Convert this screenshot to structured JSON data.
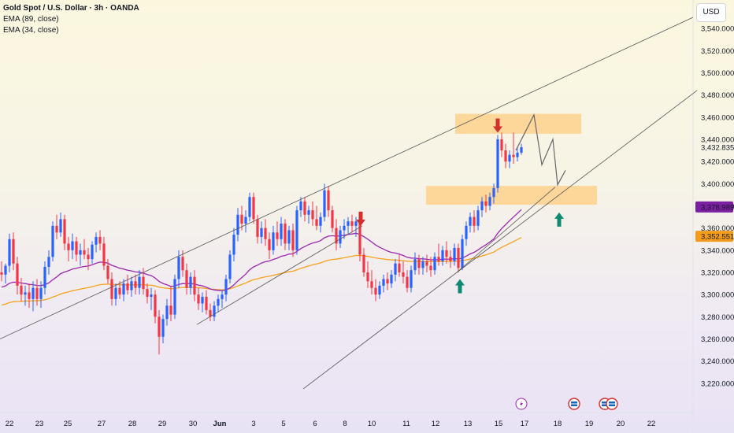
{
  "legend": {
    "title": "Gold Spot / U.S. Dollar · 3h · OANDA",
    "ema89": "EMA (89, close)",
    "ema34": "EMA (34, close)"
  },
  "currency": "USD",
  "colors": {
    "up": "#2962ff",
    "down": "#f23645",
    "ema34": "#9c27b0",
    "ema89": "#f7a21b",
    "zone": "#ffcc80",
    "arrow_down": "#d32f2f",
    "arrow_up": "#0d8a6f",
    "price_tag_purple": "#7b1fa2",
    "price_tag_orange": "#f59c1a",
    "trend_line": "#555555"
  },
  "chart_data": {
    "type": "candlestick",
    "y_axis": {
      "ylim": [
        3205,
        3550
      ],
      "ticks": [
        3220,
        3240,
        3260,
        3280,
        3300,
        3320,
        3340,
        3360,
        3380,
        3400,
        3420,
        3440,
        3460,
        3480,
        3500,
        3520,
        3540
      ]
    },
    "x_axis": {
      "labels": [
        "22",
        "23",
        "25",
        "27",
        "28",
        "29",
        "30",
        "Jun",
        "3",
        "5",
        "6",
        "8",
        "10",
        "11",
        "12",
        "13",
        "15",
        "17",
        "18",
        "19",
        "20",
        "22"
      ]
    },
    "price_tags": [
      {
        "value": 3432.835,
        "label": "3,432.835",
        "kind": "last"
      },
      {
        "value": 3378.989,
        "label": "3,378.989",
        "kind": "ema34"
      },
      {
        "value": 3352.551,
        "label": "3,352.551",
        "kind": "ema89"
      }
    ],
    "zones": [
      {
        "low": 3445,
        "high": 3463
      },
      {
        "low": 3381,
        "high": 3398
      }
    ],
    "trendlines": [
      {
        "from": [
          0,
          3260
        ],
        "to": [
          880,
          3550
        ]
      },
      {
        "from": [
          385,
          3215
        ],
        "to": [
          885,
          3484
        ]
      },
      {
        "from": [
          250,
          3273
        ],
        "to": [
          460,
          3362
        ]
      },
      {
        "from": [
          580,
          3320
        ],
        "to": [
          705,
          3397
        ]
      }
    ],
    "projection": [
      [
        655,
        3430
      ],
      [
        678,
        3462
      ],
      [
        688,
        3417
      ],
      [
        702,
        3440
      ],
      [
        708,
        3399
      ],
      [
        718,
        3412
      ]
    ],
    "arrows": [
      {
        "x": 458,
        "price": 3362,
        "dir": "down"
      },
      {
        "x": 632,
        "price": 3446,
        "dir": "down"
      },
      {
        "x": 584,
        "price": 3314,
        "dir": "up"
      },
      {
        "x": 710,
        "price": 3374,
        "dir": "up"
      }
    ],
    "candles": [
      {
        "x": 2,
        "o": 3320,
        "h": 3330,
        "l": 3312,
        "c": 3318
      },
      {
        "x": 7,
        "o": 3318,
        "h": 3328,
        "l": 3310,
        "c": 3326
      },
      {
        "x": 12,
        "o": 3326,
        "h": 3355,
        "l": 3320,
        "c": 3350
      },
      {
        "x": 17,
        "o": 3350,
        "h": 3356,
        "l": 3322,
        "c": 3328
      },
      {
        "x": 22,
        "o": 3328,
        "h": 3334,
        "l": 3300,
        "c": 3308
      },
      {
        "x": 27,
        "o": 3308,
        "h": 3315,
        "l": 3294,
        "c": 3300
      },
      {
        "x": 32,
        "o": 3300,
        "h": 3308,
        "l": 3290,
        "c": 3302
      },
      {
        "x": 37,
        "o": 3302,
        "h": 3310,
        "l": 3288,
        "c": 3296
      },
      {
        "x": 42,
        "o": 3296,
        "h": 3312,
        "l": 3285,
        "c": 3306
      },
      {
        "x": 47,
        "o": 3306,
        "h": 3314,
        "l": 3290,
        "c": 3296
      },
      {
        "x": 52,
        "o": 3296,
        "h": 3312,
        "l": 3288,
        "c": 3306
      },
      {
        "x": 57,
        "o": 3306,
        "h": 3330,
        "l": 3300,
        "c": 3325
      },
      {
        "x": 62,
        "o": 3325,
        "h": 3340,
        "l": 3318,
        "c": 3334
      },
      {
        "x": 67,
        "o": 3334,
        "h": 3366,
        "l": 3330,
        "c": 3362
      },
      {
        "x": 72,
        "o": 3362,
        "h": 3372,
        "l": 3350,
        "c": 3356
      },
      {
        "x": 77,
        "o": 3356,
        "h": 3374,
        "l": 3352,
        "c": 3368
      },
      {
        "x": 82,
        "o": 3368,
        "h": 3372,
        "l": 3340,
        "c": 3346
      },
      {
        "x": 87,
        "o": 3346,
        "h": 3352,
        "l": 3330,
        "c": 3340
      },
      {
        "x": 92,
        "o": 3340,
        "h": 3355,
        "l": 3332,
        "c": 3348
      },
      {
        "x": 97,
        "o": 3348,
        "h": 3352,
        "l": 3330,
        "c": 3336
      },
      {
        "x": 102,
        "o": 3336,
        "h": 3346,
        "l": 3326,
        "c": 3340
      },
      {
        "x": 107,
        "o": 3340,
        "h": 3350,
        "l": 3332,
        "c": 3336
      },
      {
        "x": 112,
        "o": 3336,
        "h": 3342,
        "l": 3322,
        "c": 3332
      },
      {
        "x": 117,
        "o": 3332,
        "h": 3348,
        "l": 3328,
        "c": 3345
      },
      {
        "x": 122,
        "o": 3345,
        "h": 3356,
        "l": 3338,
        "c": 3352
      },
      {
        "x": 127,
        "o": 3352,
        "h": 3358,
        "l": 3340,
        "c": 3346
      },
      {
        "x": 132,
        "o": 3346,
        "h": 3352,
        "l": 3322,
        "c": 3326
      },
      {
        "x": 137,
        "o": 3326,
        "h": 3332,
        "l": 3310,
        "c": 3314
      },
      {
        "x": 142,
        "o": 3314,
        "h": 3320,
        "l": 3290,
        "c": 3296
      },
      {
        "x": 147,
        "o": 3296,
        "h": 3310,
        "l": 3290,
        "c": 3306
      },
      {
        "x": 152,
        "o": 3306,
        "h": 3312,
        "l": 3296,
        "c": 3300
      },
      {
        "x": 157,
        "o": 3300,
        "h": 3314,
        "l": 3294,
        "c": 3310
      },
      {
        "x": 162,
        "o": 3310,
        "h": 3318,
        "l": 3300,
        "c": 3304
      },
      {
        "x": 167,
        "o": 3304,
        "h": 3316,
        "l": 3298,
        "c": 3312
      },
      {
        "x": 172,
        "o": 3312,
        "h": 3318,
        "l": 3300,
        "c": 3306
      },
      {
        "x": 177,
        "o": 3306,
        "h": 3322,
        "l": 3300,
        "c": 3316
      },
      {
        "x": 182,
        "o": 3316,
        "h": 3324,
        "l": 3300,
        "c": 3305
      },
      {
        "x": 187,
        "o": 3305,
        "h": 3310,
        "l": 3292,
        "c": 3298
      },
      {
        "x": 192,
        "o": 3298,
        "h": 3306,
        "l": 3286,
        "c": 3300
      },
      {
        "x": 197,
        "o": 3300,
        "h": 3304,
        "l": 3274,
        "c": 3280
      },
      {
        "x": 202,
        "o": 3280,
        "h": 3286,
        "l": 3246,
        "c": 3262
      },
      {
        "x": 207,
        "o": 3262,
        "h": 3282,
        "l": 3256,
        "c": 3278
      },
      {
        "x": 212,
        "o": 3278,
        "h": 3296,
        "l": 3272,
        "c": 3290
      },
      {
        "x": 217,
        "o": 3290,
        "h": 3308,
        "l": 3276,
        "c": 3282
      },
      {
        "x": 222,
        "o": 3282,
        "h": 3318,
        "l": 3278,
        "c": 3314
      },
      {
        "x": 227,
        "o": 3314,
        "h": 3340,
        "l": 3306,
        "c": 3334
      },
      {
        "x": 232,
        "o": 3334,
        "h": 3340,
        "l": 3316,
        "c": 3322
      },
      {
        "x": 237,
        "o": 3322,
        "h": 3328,
        "l": 3300,
        "c": 3306
      },
      {
        "x": 242,
        "o": 3306,
        "h": 3320,
        "l": 3300,
        "c": 3316
      },
      {
        "x": 247,
        "o": 3316,
        "h": 3322,
        "l": 3294,
        "c": 3300
      },
      {
        "x": 252,
        "o": 3300,
        "h": 3306,
        "l": 3286,
        "c": 3292
      },
      {
        "x": 257,
        "o": 3292,
        "h": 3302,
        "l": 3284,
        "c": 3298
      },
      {
        "x": 262,
        "o": 3298,
        "h": 3304,
        "l": 3282,
        "c": 3286
      },
      {
        "x": 267,
        "o": 3286,
        "h": 3292,
        "l": 3276,
        "c": 3280
      },
      {
        "x": 272,
        "o": 3280,
        "h": 3294,
        "l": 3276,
        "c": 3290
      },
      {
        "x": 277,
        "o": 3290,
        "h": 3300,
        "l": 3284,
        "c": 3296
      },
      {
        "x": 282,
        "o": 3296,
        "h": 3304,
        "l": 3288,
        "c": 3300
      },
      {
        "x": 287,
        "o": 3300,
        "h": 3318,
        "l": 3294,
        "c": 3314
      },
      {
        "x": 292,
        "o": 3314,
        "h": 3340,
        "l": 3310,
        "c": 3336
      },
      {
        "x": 297,
        "o": 3336,
        "h": 3360,
        "l": 3330,
        "c": 3354
      },
      {
        "x": 302,
        "o": 3354,
        "h": 3378,
        "l": 3348,
        "c": 3372
      },
      {
        "x": 307,
        "o": 3372,
        "h": 3380,
        "l": 3358,
        "c": 3364
      },
      {
        "x": 312,
        "o": 3364,
        "h": 3376,
        "l": 3356,
        "c": 3370
      },
      {
        "x": 317,
        "o": 3370,
        "h": 3392,
        "l": 3366,
        "c": 3388
      },
      {
        "x": 322,
        "o": 3388,
        "h": 3392,
        "l": 3364,
        "c": 3368
      },
      {
        "x": 327,
        "o": 3368,
        "h": 3372,
        "l": 3346,
        "c": 3352
      },
      {
        "x": 332,
        "o": 3352,
        "h": 3366,
        "l": 3346,
        "c": 3360
      },
      {
        "x": 337,
        "o": 3360,
        "h": 3368,
        "l": 3344,
        "c": 3350
      },
      {
        "x": 342,
        "o": 3350,
        "h": 3356,
        "l": 3332,
        "c": 3340
      },
      {
        "x": 347,
        "o": 3340,
        "h": 3362,
        "l": 3336,
        "c": 3356
      },
      {
        "x": 352,
        "o": 3356,
        "h": 3366,
        "l": 3344,
        "c": 3350
      },
      {
        "x": 357,
        "o": 3350,
        "h": 3370,
        "l": 3344,
        "c": 3364
      },
      {
        "x": 362,
        "o": 3364,
        "h": 3368,
        "l": 3340,
        "c": 3346
      },
      {
        "x": 367,
        "o": 3346,
        "h": 3362,
        "l": 3340,
        "c": 3358
      },
      {
        "x": 372,
        "o": 3358,
        "h": 3364,
        "l": 3334,
        "c": 3340
      },
      {
        "x": 377,
        "o": 3340,
        "h": 3380,
        "l": 3336,
        "c": 3376
      },
      {
        "x": 382,
        "o": 3376,
        "h": 3388,
        "l": 3370,
        "c": 3384
      },
      {
        "x": 387,
        "o": 3384,
        "h": 3388,
        "l": 3366,
        "c": 3372
      },
      {
        "x": 392,
        "o": 3372,
        "h": 3380,
        "l": 3364,
        "c": 3376
      },
      {
        "x": 397,
        "o": 3376,
        "h": 3384,
        "l": 3362,
        "c": 3368
      },
      {
        "x": 402,
        "o": 3368,
        "h": 3380,
        "l": 3358,
        "c": 3362
      },
      {
        "x": 407,
        "o": 3362,
        "h": 3374,
        "l": 3356,
        "c": 3370
      },
      {
        "x": 412,
        "o": 3370,
        "h": 3400,
        "l": 3366,
        "c": 3394
      },
      {
        "x": 417,
        "o": 3394,
        "h": 3398,
        "l": 3370,
        "c": 3376
      },
      {
        "x": 422,
        "o": 3376,
        "h": 3380,
        "l": 3356,
        "c": 3360
      },
      {
        "x": 427,
        "o": 3360,
        "h": 3368,
        "l": 3340,
        "c": 3346
      },
      {
        "x": 432,
        "o": 3346,
        "h": 3362,
        "l": 3342,
        "c": 3358
      },
      {
        "x": 437,
        "o": 3358,
        "h": 3368,
        "l": 3350,
        "c": 3362
      },
      {
        "x": 442,
        "o": 3362,
        "h": 3370,
        "l": 3354,
        "c": 3366
      },
      {
        "x": 447,
        "o": 3366,
        "h": 3372,
        "l": 3356,
        "c": 3362
      },
      {
        "x": 452,
        "o": 3362,
        "h": 3370,
        "l": 3352,
        "c": 3366
      },
      {
        "x": 457,
        "o": 3366,
        "h": 3372,
        "l": 3330,
        "c": 3336
      },
      {
        "x": 462,
        "o": 3336,
        "h": 3342,
        "l": 3316,
        "c": 3320
      },
      {
        "x": 467,
        "o": 3320,
        "h": 3330,
        "l": 3306,
        "c": 3312
      },
      {
        "x": 472,
        "o": 3312,
        "h": 3322,
        "l": 3300,
        "c": 3306
      },
      {
        "x": 477,
        "o": 3306,
        "h": 3314,
        "l": 3294,
        "c": 3300
      },
      {
        "x": 482,
        "o": 3300,
        "h": 3312,
        "l": 3296,
        "c": 3308
      },
      {
        "x": 487,
        "o": 3308,
        "h": 3318,
        "l": 3302,
        "c": 3314
      },
      {
        "x": 492,
        "o": 3314,
        "h": 3320,
        "l": 3304,
        "c": 3310
      },
      {
        "x": 497,
        "o": 3310,
        "h": 3322,
        "l": 3306,
        "c": 3318
      },
      {
        "x": 502,
        "o": 3318,
        "h": 3332,
        "l": 3312,
        "c": 3328
      },
      {
        "x": 507,
        "o": 3328,
        "h": 3336,
        "l": 3316,
        "c": 3320
      },
      {
        "x": 512,
        "o": 3320,
        "h": 3330,
        "l": 3310,
        "c": 3316
      },
      {
        "x": 517,
        "o": 3316,
        "h": 3322,
        "l": 3302,
        "c": 3306
      },
      {
        "x": 522,
        "o": 3306,
        "h": 3326,
        "l": 3302,
        "c": 3322
      },
      {
        "x": 527,
        "o": 3322,
        "h": 3338,
        "l": 3318,
        "c": 3332
      },
      {
        "x": 532,
        "o": 3332,
        "h": 3336,
        "l": 3318,
        "c": 3324
      },
      {
        "x": 537,
        "o": 3324,
        "h": 3334,
        "l": 3318,
        "c": 3330
      },
      {
        "x": 542,
        "o": 3330,
        "h": 3336,
        "l": 3320,
        "c": 3326
      },
      {
        "x": 547,
        "o": 3326,
        "h": 3334,
        "l": 3316,
        "c": 3322
      },
      {
        "x": 552,
        "o": 3322,
        "h": 3338,
        "l": 3318,
        "c": 3334
      },
      {
        "x": 557,
        "o": 3334,
        "h": 3346,
        "l": 3326,
        "c": 3330
      },
      {
        "x": 562,
        "o": 3330,
        "h": 3344,
        "l": 3326,
        "c": 3340
      },
      {
        "x": 567,
        "o": 3340,
        "h": 3348,
        "l": 3328,
        "c": 3334
      },
      {
        "x": 572,
        "o": 3334,
        "h": 3340,
        "l": 3324,
        "c": 3330
      },
      {
        "x": 577,
        "o": 3330,
        "h": 3346,
        "l": 3326,
        "c": 3342
      },
      {
        "x": 582,
        "o": 3342,
        "h": 3346,
        "l": 3320,
        "c": 3324
      },
      {
        "x": 587,
        "o": 3324,
        "h": 3354,
        "l": 3322,
        "c": 3350
      },
      {
        "x": 592,
        "o": 3350,
        "h": 3366,
        "l": 3344,
        "c": 3362
      },
      {
        "x": 597,
        "o": 3362,
        "h": 3374,
        "l": 3356,
        "c": 3370
      },
      {
        "x": 602,
        "o": 3370,
        "h": 3376,
        "l": 3356,
        "c": 3362
      },
      {
        "x": 607,
        "o": 3362,
        "h": 3380,
        "l": 3358,
        "c": 3376
      },
      {
        "x": 612,
        "o": 3376,
        "h": 3388,
        "l": 3370,
        "c": 3384
      },
      {
        "x": 617,
        "o": 3384,
        "h": 3390,
        "l": 3374,
        "c": 3380
      },
      {
        "x": 622,
        "o": 3380,
        "h": 3392,
        "l": 3376,
        "c": 3388
      },
      {
        "x": 627,
        "o": 3388,
        "h": 3400,
        "l": 3382,
        "c": 3396
      },
      {
        "x": 632,
        "o": 3396,
        "h": 3444,
        "l": 3392,
        "c": 3440
      },
      {
        "x": 637,
        "o": 3440,
        "h": 3446,
        "l": 3424,
        "c": 3430
      },
      {
        "x": 642,
        "o": 3430,
        "h": 3436,
        "l": 3414,
        "c": 3420
      },
      {
        "x": 647,
        "o": 3420,
        "h": 3430,
        "l": 3414,
        "c": 3426
      },
      {
        "x": 652,
        "o": 3426,
        "h": 3446,
        "l": 3418,
        "c": 3424
      },
      {
        "x": 657,
        "o": 3424,
        "h": 3432,
        "l": 3420,
        "c": 3428
      },
      {
        "x": 662,
        "o": 3428,
        "h": 3436,
        "l": 3426,
        "c": 3432.835
      }
    ]
  },
  "events": [
    {
      "x": 662,
      "icon": "lightning"
    },
    {
      "x": 729,
      "icon": "us-flag"
    },
    {
      "x": 768,
      "icon": "us-flag"
    },
    {
      "x": 777,
      "icon": "us-flag"
    }
  ]
}
